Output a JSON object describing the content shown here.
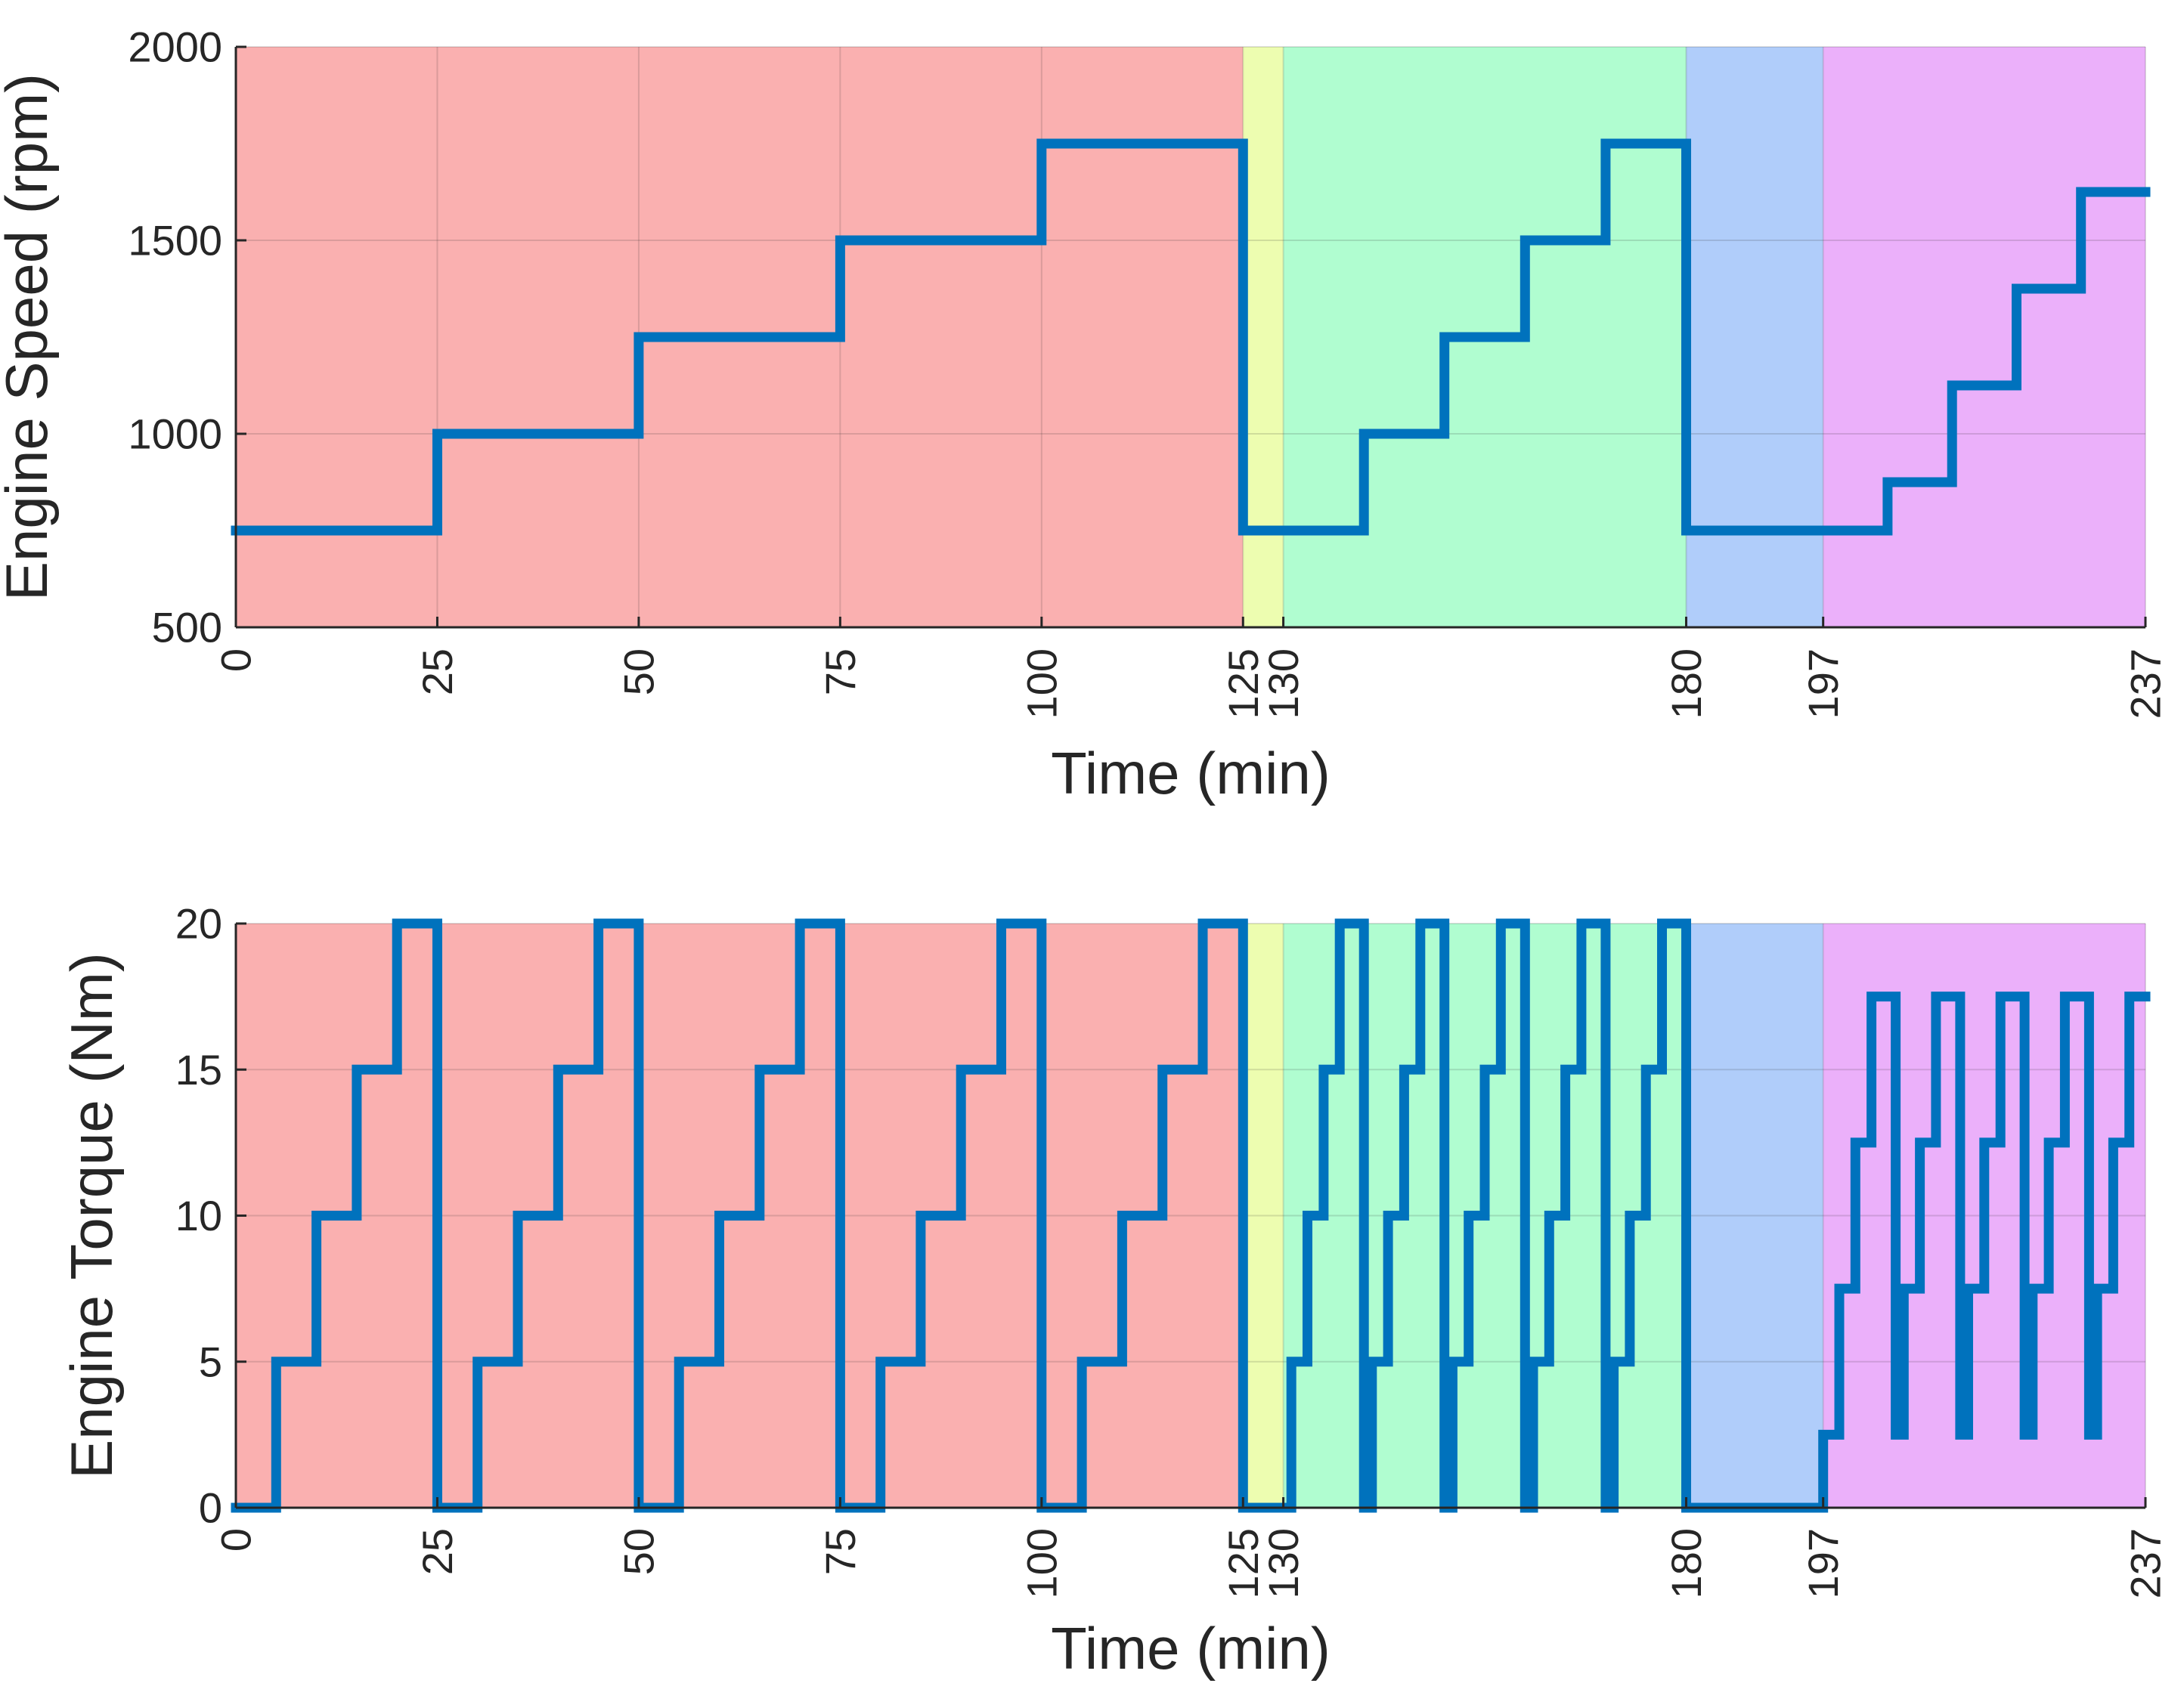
{
  "chart_data": [
    {
      "type": "line",
      "name": "engine-speed",
      "xlabel": "Time (min)",
      "ylabel": "Engine Speed (rpm)",
      "xlim": [
        0,
        237
      ],
      "ylim": [
        500,
        2000
      ],
      "xticks": [
        0,
        25,
        50,
        75,
        100,
        125,
        130,
        180,
        197,
        237
      ],
      "yticks": [
        500,
        1000,
        1500,
        2000
      ],
      "grid": true,
      "regions": [
        {
          "from": 0,
          "to": 125,
          "color": "#FAB0B0"
        },
        {
          "from": 125,
          "to": 130,
          "color": "#EDFDB0"
        },
        {
          "from": 130,
          "to": 180,
          "color": "#B0FDD0"
        },
        {
          "from": 180,
          "to": 197,
          "color": "#B0CDFA"
        },
        {
          "from": 197,
          "to": 237,
          "color": "#EBB0FA"
        }
      ],
      "series": [
        {
          "name": "Engine Speed",
          "color": "#0072BD",
          "x": [
            0,
            25,
            25,
            50,
            50,
            75,
            75,
            100,
            100,
            125,
            125,
            140,
            140,
            150,
            150,
            160,
            160,
            170,
            170,
            180,
            180,
            205,
            205,
            213,
            213,
            221,
            221,
            229,
            229,
            237
          ],
          "y": [
            750,
            750,
            1000,
            1000,
            1250,
            1250,
            1500,
            1500,
            1750,
            1750,
            750,
            750,
            1000,
            1000,
            1250,
            1250,
            1500,
            1500,
            1750,
            1750,
            750,
            750,
            875,
            875,
            1125,
            1125,
            1375,
            1375,
            1625,
            1625
          ]
        }
      ]
    },
    {
      "type": "line",
      "name": "engine-torque",
      "xlabel": "Time (min)",
      "ylabel": "Engine Torque (Nm)",
      "xlim": [
        0,
        237
      ],
      "ylim": [
        0,
        20
      ],
      "xticks": [
        0,
        25,
        50,
        75,
        100,
        125,
        130,
        180,
        197,
        237
      ],
      "yticks": [
        0,
        5,
        10,
        15,
        20
      ],
      "grid": true,
      "regions": [
        {
          "from": 0,
          "to": 125,
          "color": "#FAB0B0"
        },
        {
          "from": 125,
          "to": 130,
          "color": "#EDFDB0"
        },
        {
          "from": 130,
          "to": 180,
          "color": "#B0FDD0"
        },
        {
          "from": 180,
          "to": 197,
          "color": "#B0CDFA"
        },
        {
          "from": 197,
          "to": 237,
          "color": "#EBB0FA"
        }
      ],
      "series": [
        {
          "name": "Engine Torque",
          "color": "#0072BD",
          "x": [
            0,
            5,
            5,
            10,
            10,
            15,
            15,
            20,
            20,
            24,
            24,
            25,
            25,
            30,
            30,
            35,
            35,
            40,
            40,
            45,
            45,
            49,
            49,
            50,
            50,
            55,
            55,
            60,
            60,
            65,
            65,
            70,
            70,
            74,
            74,
            75,
            75,
            80,
            80,
            85,
            85,
            90,
            90,
            95,
            95,
            99,
            99,
            100,
            100,
            105,
            105,
            110,
            110,
            115,
            115,
            120,
            120,
            124,
            124,
            125,
            125,
            131,
            131,
            133,
            133,
            135,
            135,
            137,
            137,
            139,
            139,
            140,
            140,
            141,
            141,
            143,
            143,
            145,
            145,
            147,
            147,
            149,
            149,
            150,
            150,
            151,
            151,
            153,
            153,
            155,
            155,
            157,
            157,
            159,
            159,
            160,
            160,
            161,
            161,
            163,
            163,
            165,
            165,
            167,
            167,
            169,
            169,
            170,
            170,
            171,
            171,
            173,
            173,
            175,
            175,
            177,
            177,
            179,
            179,
            180,
            180,
            197,
            197,
            199,
            199,
            201,
            201,
            203,
            203,
            205,
            205,
            206,
            206,
            207,
            207,
            209,
            209,
            211,
            211,
            213,
            213,
            214,
            214,
            215,
            215,
            217,
            217,
            219,
            219,
            221,
            221,
            222,
            222,
            223,
            223,
            225,
            225,
            227,
            227,
            229,
            229,
            230,
            230,
            231,
            231,
            233,
            233,
            235,
            235,
            237
          ],
          "y": [
            0,
            0,
            5,
            5,
            10,
            10,
            15,
            15,
            20,
            20,
            20,
            20,
            0,
            0,
            5,
            5,
            10,
            10,
            15,
            15,
            20,
            20,
            20,
            20,
            0,
            0,
            5,
            5,
            10,
            10,
            15,
            15,
            20,
            20,
            20,
            20,
            0,
            0,
            5,
            5,
            10,
            10,
            15,
            15,
            20,
            20,
            20,
            20,
            0,
            0,
            5,
            5,
            10,
            10,
            15,
            15,
            20,
            20,
            20,
            20,
            0,
            0,
            5,
            5,
            10,
            10,
            15,
            15,
            20,
            20,
            20,
            20,
            0,
            0,
            5,
            5,
            10,
            10,
            15,
            15,
            20,
            20,
            20,
            20,
            0,
            0,
            5,
            5,
            10,
            10,
            15,
            15,
            20,
            20,
            20,
            20,
            0,
            0,
            5,
            5,
            10,
            10,
            15,
            15,
            20,
            20,
            20,
            20,
            0,
            0,
            5,
            5,
            10,
            10,
            15,
            15,
            20,
            20,
            20,
            20,
            0,
            0,
            2.5,
            2.5,
            7.5,
            7.5,
            12.5,
            12.5,
            17.5,
            17.5,
            17.5,
            17.5,
            2.5,
            2.5,
            7.5,
            7.5,
            12.5,
            12.5,
            17.5,
            17.5,
            17.5,
            17.5,
            2.5,
            2.5,
            7.5,
            7.5,
            12.5,
            12.5,
            17.5,
            17.5,
            17.5,
            17.5,
            2.5,
            2.5,
            7.5,
            7.5,
            12.5,
            12.5,
            17.5,
            17.5,
            17.5,
            17.5,
            2.5,
            2.5,
            7.5,
            7.5,
            12.5,
            12.5,
            17.5,
            17.5
          ]
        }
      ]
    }
  ]
}
